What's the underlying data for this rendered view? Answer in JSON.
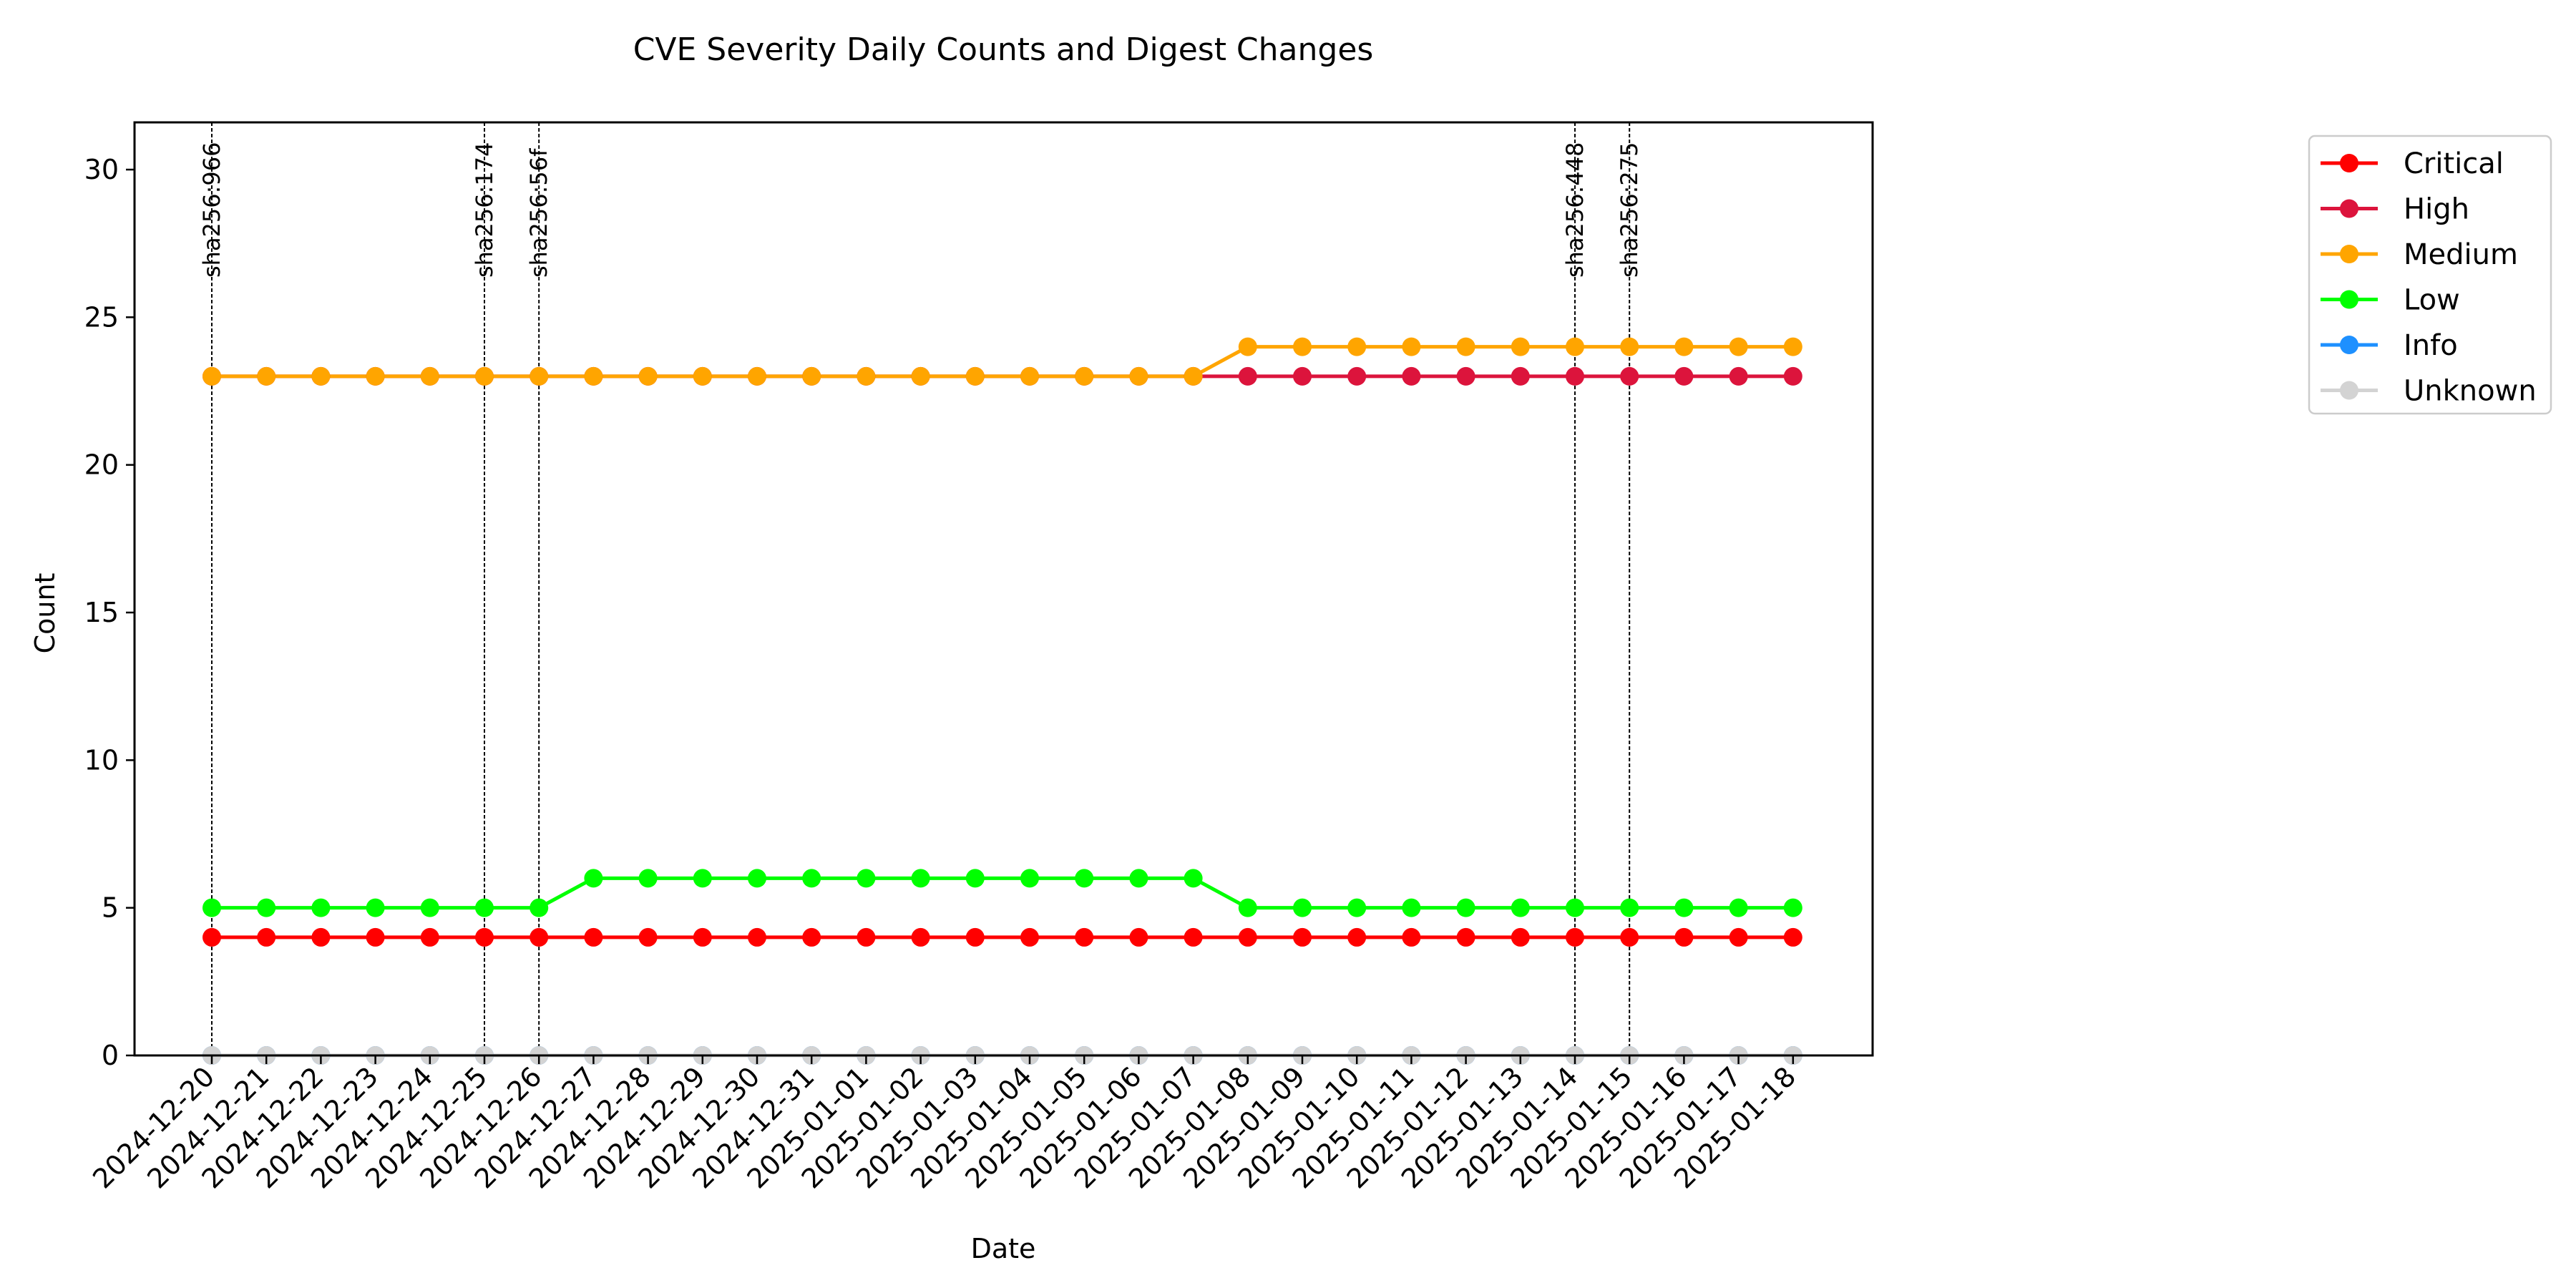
{
  "chart_data": {
    "type": "line",
    "title": "CVE Severity Daily Counts and Digest Changes",
    "xlabel": "Date",
    "ylabel": "Count",
    "ylim": [
      0,
      31.6
    ],
    "yticks": [
      0,
      5,
      10,
      15,
      20,
      25,
      30
    ],
    "grid": false,
    "legend_position": "outside-top-right",
    "x": [
      "2024-12-20",
      "2024-12-21",
      "2024-12-22",
      "2024-12-23",
      "2024-12-24",
      "2024-12-25",
      "2024-12-26",
      "2024-12-27",
      "2024-12-28",
      "2024-12-29",
      "2024-12-30",
      "2024-12-31",
      "2025-01-01",
      "2025-01-02",
      "2025-01-03",
      "2025-01-04",
      "2025-01-05",
      "2025-01-06",
      "2025-01-07",
      "2025-01-08",
      "2025-01-09",
      "2025-01-10",
      "2025-01-11",
      "2025-01-12",
      "2025-01-13",
      "2025-01-14",
      "2025-01-15",
      "2025-01-16",
      "2025-01-17",
      "2025-01-18"
    ],
    "series": [
      {
        "name": "Critical",
        "color": "#ff0000",
        "values": [
          4,
          4,
          4,
          4,
          4,
          4,
          4,
          4,
          4,
          4,
          4,
          4,
          4,
          4,
          4,
          4,
          4,
          4,
          4,
          4,
          4,
          4,
          4,
          4,
          4,
          4,
          4,
          4,
          4,
          4
        ]
      },
      {
        "name": "High",
        "color": "#dc143c",
        "values": [
          23,
          23,
          23,
          23,
          23,
          23,
          23,
          23,
          23,
          23,
          23,
          23,
          23,
          23,
          23,
          23,
          23,
          23,
          23,
          23,
          23,
          23,
          23,
          23,
          23,
          23,
          23,
          23,
          23,
          23
        ]
      },
      {
        "name": "Medium",
        "color": "#ffa500",
        "values": [
          23,
          23,
          23,
          23,
          23,
          23,
          23,
          23,
          23,
          23,
          23,
          23,
          23,
          23,
          23,
          23,
          23,
          23,
          23,
          24,
          24,
          24,
          24,
          24,
          24,
          24,
          24,
          24,
          24,
          24
        ]
      },
      {
        "name": "Low",
        "color": "#00ff00",
        "values": [
          5,
          5,
          5,
          5,
          5,
          5,
          5,
          6,
          6,
          6,
          6,
          6,
          6,
          6,
          6,
          6,
          6,
          6,
          6,
          5,
          5,
          5,
          5,
          5,
          5,
          5,
          5,
          5,
          5,
          5
        ]
      },
      {
        "name": "Info",
        "color": "#1e90ff",
        "values": [
          0,
          0,
          0,
          0,
          0,
          0,
          0,
          0,
          0,
          0,
          0,
          0,
          0,
          0,
          0,
          0,
          0,
          0,
          0,
          0,
          0,
          0,
          0,
          0,
          0,
          0,
          0,
          0,
          0,
          0
        ]
      },
      {
        "name": "Unknown",
        "color": "#d3d3d3",
        "values": [
          0,
          0,
          0,
          0,
          0,
          0,
          0,
          0,
          0,
          0,
          0,
          0,
          0,
          0,
          0,
          0,
          0,
          0,
          0,
          0,
          0,
          0,
          0,
          0,
          0,
          0,
          0,
          0,
          0,
          0
        ]
      }
    ],
    "annotations": [
      {
        "x": "2024-12-20",
        "label": "sha256:966"
      },
      {
        "x": "2024-12-25",
        "label": "sha256:174"
      },
      {
        "x": "2024-12-26",
        "label": "sha256:56f"
      },
      {
        "x": "2025-01-14",
        "label": "sha256:448"
      },
      {
        "x": "2025-01-15",
        "label": "sha256:275"
      }
    ]
  }
}
